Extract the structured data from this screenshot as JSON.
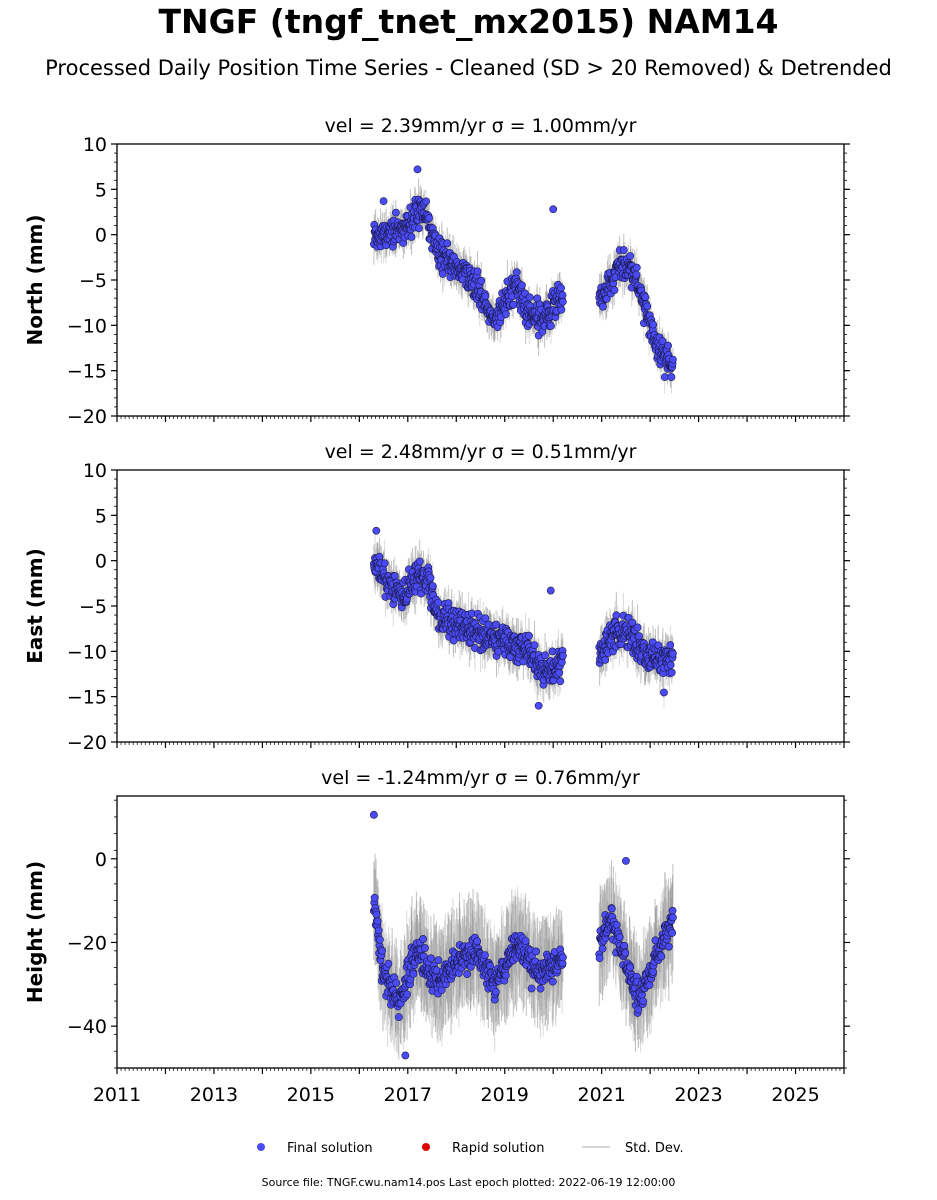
{
  "title": "TNGF (tngf_tnet_mx2015) NAM14",
  "subtitle": "Processed Daily Position Time Series - Cleaned (SD > 20 Removed) & Detrended",
  "footer": "Source file: TNGF.cwu.nam14.pos  Last epoch plotted: 2022-06-19 12:00:00",
  "legend": [
    {
      "label": "Final solution",
      "color": "#4b4bf5",
      "kind": "marker"
    },
    {
      "label": "Rapid solution",
      "color": "#e00000",
      "kind": "marker"
    },
    {
      "label": "Std. Dev.",
      "color": "#c8c8c8",
      "kind": "line"
    }
  ],
  "chart_data": [
    {
      "type": "scatter",
      "title": "vel = 2.39mm/yr   σ = 1.00mm/yr",
      "ylabel": "North (mm)",
      "xlim": [
        2011,
        2026
      ],
      "ylim": [
        -20,
        10
      ],
      "yticks": [
        -20,
        -15,
        -10,
        -5,
        0,
        5,
        10
      ],
      "series_color": "#4b4bf5",
      "segments": [
        {
          "x": [
            2016.3,
            2017.0,
            2017.2,
            2017.35,
            2017.6,
            2018.0,
            2018.4,
            2018.8,
            2019.2,
            2019.5,
            2019.75,
            2020.0,
            2020.2
          ],
          "y": [
            -0.5,
            1.0,
            3.0,
            2.5,
            -2.0,
            -3.5,
            -5.5,
            -9.5,
            -5.5,
            -8.5,
            -9.5,
            -8.0,
            -7.0
          ],
          "sd": 1.6
        },
        {
          "x": [
            2020.95,
            2021.2,
            2021.35,
            2021.6,
            2021.8,
            2022.0,
            2022.2,
            2022.47
          ],
          "y": [
            -7.0,
            -5.5,
            -3.5,
            -3.5,
            -6.0,
            -10.5,
            -12.5,
            -14.5
          ],
          "sd": 1.6
        }
      ],
      "outliers": [
        {
          "x": 2017.2,
          "y": 7.2
        },
        {
          "x": 2020.0,
          "y": 2.8
        },
        {
          "x": 2016.5,
          "y": 3.7
        }
      ]
    },
    {
      "type": "scatter",
      "title": "vel = 2.48mm/yr   σ = 0.51mm/yr",
      "ylabel": "East (mm)",
      "xlim": [
        2011,
        2026
      ],
      "ylim": [
        -20,
        10
      ],
      "yticks": [
        -20,
        -15,
        -10,
        -5,
        0,
        5,
        10
      ],
      "series_color": "#4b4bf5",
      "segments": [
        {
          "x": [
            2016.3,
            2016.6,
            2016.9,
            2017.2,
            2017.4,
            2017.7,
            2018.0,
            2018.5,
            2019.0,
            2019.5,
            2019.8,
            2020.0,
            2020.2
          ],
          "y": [
            0.0,
            -2.5,
            -4.0,
            -1.5,
            -2.0,
            -6.5,
            -7.0,
            -8.0,
            -9.0,
            -10.0,
            -12.5,
            -12.0,
            -10.5
          ],
          "sd": 1.8
        },
        {
          "x": [
            2020.95,
            2021.2,
            2021.5,
            2021.9,
            2022.2,
            2022.47
          ],
          "y": [
            -10.0,
            -8.5,
            -7.5,
            -10.5,
            -11.0,
            -10.5
          ],
          "sd": 1.8
        }
      ],
      "outliers": [
        {
          "x": 2016.35,
          "y": 3.3
        },
        {
          "x": 2019.95,
          "y": -3.3
        },
        {
          "x": 2019.7,
          "y": -16.0
        }
      ]
    },
    {
      "type": "scatter",
      "title": "vel = -1.24mm/yr   σ = 0.76mm/yr",
      "ylabel": "Height (mm)",
      "xlabel": "",
      "xlim": [
        2011,
        2026
      ],
      "ylim": [
        -50,
        15
      ],
      "yticks": [
        -40,
        -20,
        0
      ],
      "xticks": [
        2011,
        2013,
        2015,
        2017,
        2019,
        2021,
        2023,
        2025
      ],
      "series_color": "#4b4bf5",
      "segments": [
        {
          "x": [
            2016.3,
            2016.5,
            2016.8,
            2017.2,
            2017.6,
            2018.0,
            2018.4,
            2018.8,
            2019.3,
            2019.7,
            2020.2
          ],
          "y": [
            -10.0,
            -28.0,
            -35.0,
            -22.0,
            -30.0,
            -25.0,
            -22.0,
            -30.0,
            -20.0,
            -28.0,
            -24.0
          ],
          "sd": 9.0
        },
        {
          "x": [
            2020.95,
            2021.2,
            2021.45,
            2021.8,
            2022.1,
            2022.47
          ],
          "y": [
            -20.0,
            -14.0,
            -24.0,
            -34.0,
            -24.0,
            -14.0
          ],
          "sd": 9.0
        }
      ],
      "outliers": [
        {
          "x": 2016.3,
          "y": 10.5
        },
        {
          "x": 2021.5,
          "y": -0.5
        },
        {
          "x": 2016.95,
          "y": -47.0
        }
      ]
    }
  ]
}
